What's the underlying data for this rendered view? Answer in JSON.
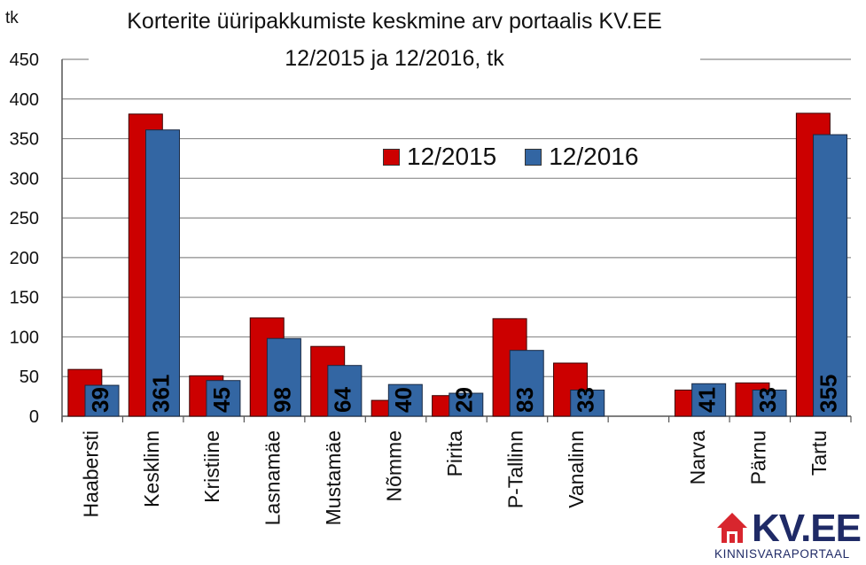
{
  "chart_data": {
    "type": "bar",
    "title": [
      "Korterite üüripakkumiste keskmine arv portaalis KV.EE",
      "12/2015 ja 12/2016, tk"
    ],
    "ylabel": "tk",
    "xlabel": "",
    "ylim": [
      0,
      450
    ],
    "yticks": [
      0,
      50,
      100,
      150,
      200,
      250,
      300,
      350,
      400,
      450
    ],
    "grid": true,
    "legend_position": "top-center",
    "categories": [
      "Haabersti",
      "Kesklinn",
      "Kristiine",
      "Lasnamäe",
      "Mustamäe",
      "Nõmme",
      "Pirita",
      "P-Tallinn",
      "Vanalinn",
      "",
      "Narva",
      "Pärnu",
      "Tartu"
    ],
    "series": [
      {
        "name": "12/2015",
        "color": "#cc0000",
        "values": [
          59,
          381,
          51,
          124,
          88,
          20,
          26,
          123,
          67,
          null,
          33,
          42,
          382
        ]
      },
      {
        "name": "12/2016",
        "color": "#3366a3",
        "values": [
          39,
          361,
          45,
          98,
          64,
          40,
          29,
          83,
          33,
          null,
          41,
          33,
          355
        ],
        "labels": [
          "39",
          "361",
          "45",
          "98",
          "64",
          "40",
          "29",
          "83",
          "33",
          "",
          "41",
          "33",
          "355"
        ]
      }
    ]
  },
  "logo": {
    "text": "KV.EE",
    "subtitle": "KINNISVARAPORTAAL",
    "colors": {
      "house": "#d8262e",
      "text": "#1f2a66"
    }
  }
}
